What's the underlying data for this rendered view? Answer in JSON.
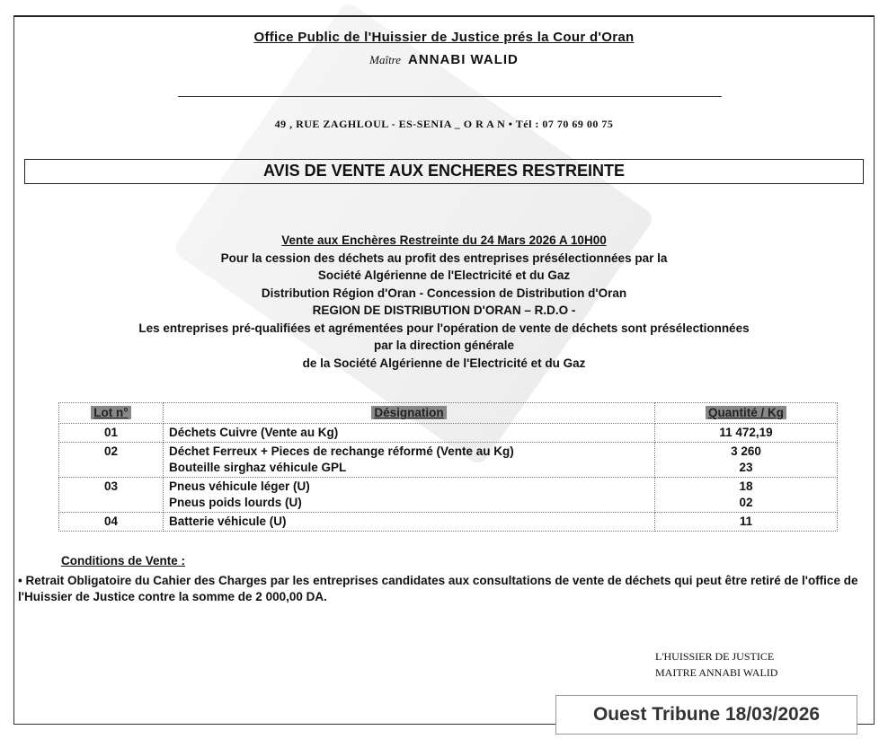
{
  "header": {
    "office": "Office Public de l'Huissier de Justice prés la Cour d'Oran",
    "maitre_prefix": "Maître",
    "name": "ANNABI WALID",
    "address": "49 , RUE ZAGHLOUL - ES-SENIA _ O R A N •  Tél : 07 70 69 00 75"
  },
  "title": "AVIS DE VENTE AUX ENCHERES RESTREINTE",
  "intro": {
    "line1": "Vente aux Enchères Restreinte du  24 Mars  2026  A 10H00",
    "line2": "Pour la cession des déchets au profit des entreprises présélectionnées par la",
    "line3": "Société Algérienne de l'Electricité et du Gaz",
    "line4": "Distribution Région d'Oran - Concession de Distribution d'Oran",
    "line5": "REGION DE DISTRIBUTION D'ORAN – R.D.O -",
    "line6": "Les entreprises pré-qualifiées et agrémentées pour l'opération de vente de déchets sont présélectionnées",
    "line7": "par la direction générale",
    "line8": "de la Société Algérienne de l'Electricité et du Gaz"
  },
  "table": {
    "headers": [
      "Lot n°",
      "Désignation",
      "Quantité / Kg"
    ],
    "rows": [
      {
        "lot": "01",
        "items": [
          "Déchets Cuivre   (Vente au Kg)"
        ],
        "qty": [
          "11 472,19"
        ]
      },
      {
        "lot": "02",
        "items": [
          "Déchet Ferreux + Pieces de rechange réformé (Vente au Kg)",
          "Bouteille sirghaz véhicule GPL"
        ],
        "qty": [
          "3 260",
          "23"
        ]
      },
      {
        "lot": "03",
        "items": [
          "Pneus véhicule léger (U)",
          "Pneus poids  lourds  (U)"
        ],
        "qty": [
          "18",
          "02"
        ]
      },
      {
        "lot": "04",
        "items": [
          "Batterie véhicule (U)"
        ],
        "qty": [
          "11"
        ]
      }
    ]
  },
  "conditions": {
    "heading": "Conditions de Vente :",
    "text": "• Retrait Obligatoire du Cahier des Charges par les entreprises candidates aux  consultations de vente de déchets  qui peut être retiré de l'office de l'Huissier de Justice contre la somme de 2 000,00 DA."
  },
  "signature": {
    "line1": "L'HUISSIER DE JUSTICE",
    "line2": "MAITRE ANNABI WALID"
  },
  "source_stamp": "Ouest Tribune 18/03/2026"
}
